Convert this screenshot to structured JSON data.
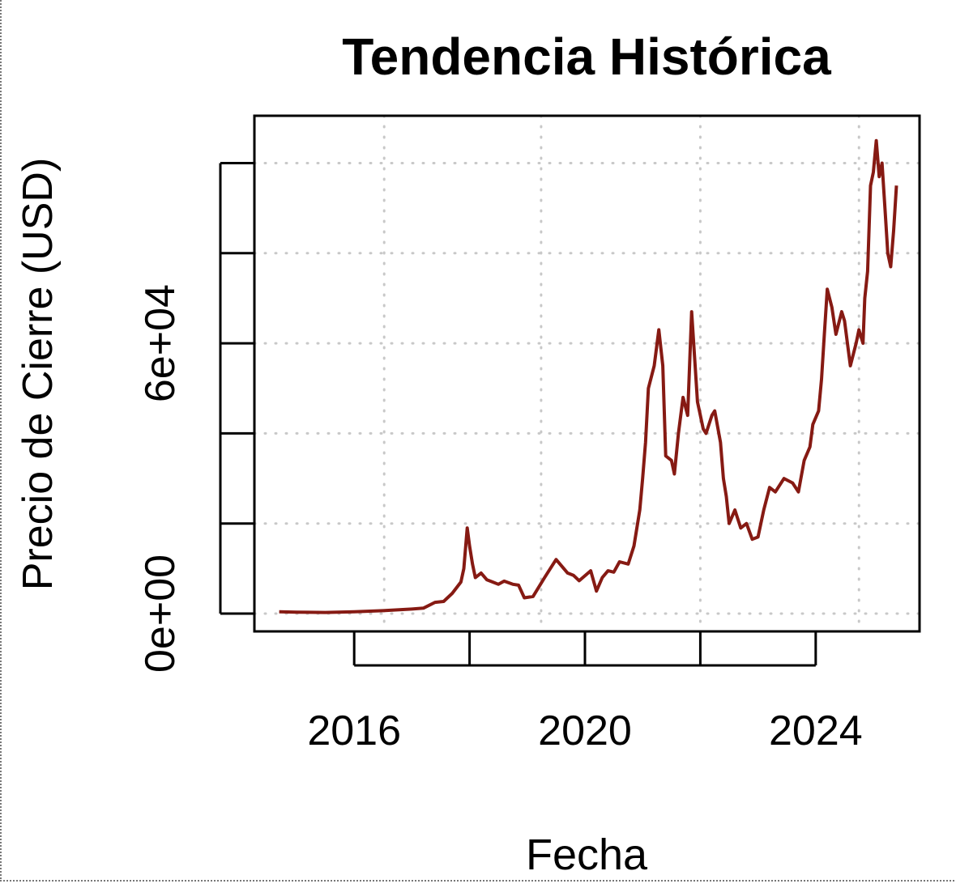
{
  "chart_data": {
    "type": "line",
    "title": "Tendencia Histórica",
    "x_label": "Fecha",
    "y_label": "Precio de Cierre (USD)",
    "series": [
      {
        "color": "#861a13",
        "x": [
          2014.7,
          2015.0,
          2015.5,
          2016.0,
          2016.5,
          2017.0,
          2017.2,
          2017.4,
          2017.55,
          2017.7,
          2017.85,
          2017.9,
          2017.96,
          2018.0,
          2018.05,
          2018.1,
          2018.2,
          2018.3,
          2018.4,
          2018.5,
          2018.6,
          2018.75,
          2018.85,
          2018.95,
          2019.1,
          2019.3,
          2019.45,
          2019.5,
          2019.6,
          2019.7,
          2019.8,
          2019.9,
          2020.1,
          2020.2,
          2020.3,
          2020.4,
          2020.5,
          2020.6,
          2020.75,
          2020.85,
          2020.95,
          2021.0,
          2021.05,
          2021.1,
          2021.2,
          2021.28,
          2021.35,
          2021.4,
          2021.5,
          2021.55,
          2021.62,
          2021.7,
          2021.78,
          2021.85,
          2021.9,
          2021.95,
          2022.05,
          2022.1,
          2022.2,
          2022.25,
          2022.35,
          2022.4,
          2022.45,
          2022.5,
          2022.6,
          2022.7,
          2022.8,
          2022.9,
          2023.0,
          2023.1,
          2023.2,
          2023.3,
          2023.45,
          2023.6,
          2023.7,
          2023.8,
          2023.9,
          2023.95,
          2024.05,
          2024.1,
          2024.15,
          2024.2,
          2024.28,
          2024.35,
          2024.45,
          2024.5,
          2024.55,
          2024.6,
          2024.7,
          2024.75,
          2024.82,
          2024.85,
          2024.9,
          2024.95,
          2025.0,
          2025.05,
          2025.1,
          2025.15,
          2025.2,
          2025.25,
          2025.3,
          2025.35,
          2025.4
        ],
        "values": [
          400,
          320,
          250,
          420,
          650,
          1000,
          1200,
          2500,
          2700,
          4500,
          7000,
          10000,
          19000,
          15000,
          11000,
          8000,
          9000,
          7500,
          7000,
          6500,
          7200,
          6500,
          6300,
          3500,
          3800,
          8000,
          11000,
          12000,
          10500,
          9000,
          8500,
          7300,
          9500,
          5000,
          8000,
          9500,
          9200,
          11500,
          11000,
          15000,
          23000,
          30000,
          38000,
          50000,
          55000,
          63000,
          55000,
          35000,
          34000,
          31000,
          40000,
          48000,
          44000,
          67000,
          57000,
          47000,
          41000,
          40000,
          44000,
          45000,
          38000,
          30000,
          26000,
          20000,
          23000,
          19000,
          20000,
          16500,
          17000,
          23000,
          28000,
          27000,
          30000,
          29000,
          27000,
          34000,
          37000,
          42000,
          45000,
          52000,
          62000,
          72000,
          68000,
          62000,
          67000,
          65000,
          60000,
          55000,
          60000,
          63000,
          60000,
          70000,
          76000,
          95000,
          98000,
          105000,
          97000,
          100000,
          90000,
          80000,
          77000,
          85000,
          95000
        ]
      }
    ],
    "xlim": [
      2014.27,
      2025.8
    ],
    "ylim": [
      -3953,
      110512
    ],
    "xticks": [
      2016,
      2020,
      2024
    ],
    "xticks_minor": [
      2018,
      2022
    ],
    "yticks": [
      {
        "value": 0,
        "label": "0e+00"
      },
      {
        "value": 60000,
        "label": "6e+04"
      }
    ],
    "yticks_minor": [
      20000,
      40000,
      80000,
      100000
    ],
    "x_gridlines": [
      2016.52,
      2019.24,
      2022,
      2024.75
    ],
    "grid": true
  }
}
